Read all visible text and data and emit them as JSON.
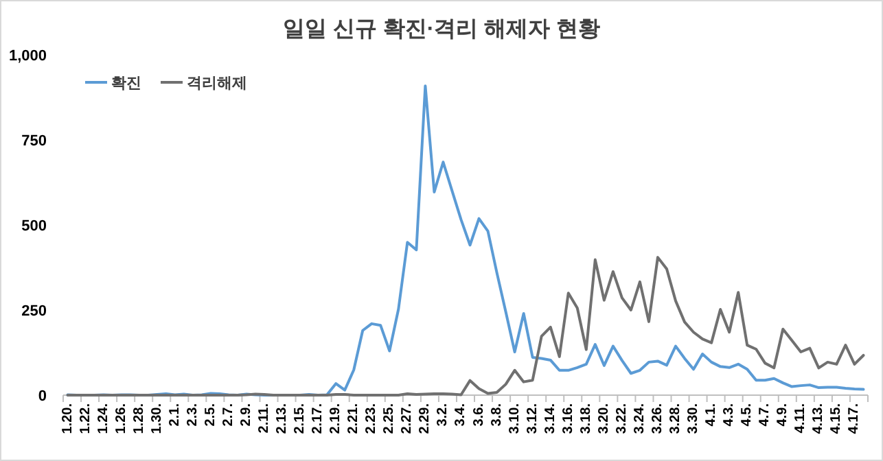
{
  "chart_data": {
    "type": "line",
    "title": "일일 신규 확진·격리 해제자 현황",
    "categories": [
      "1.20.",
      null,
      "1.22.",
      null,
      "1.24.",
      null,
      "1.26.",
      null,
      "1.28.",
      null,
      "1.30.",
      null,
      "2.1.",
      null,
      "2.3.",
      null,
      "2.5.",
      null,
      "2.7.",
      null,
      "2.9.",
      null,
      "2.11.",
      null,
      "2.13.",
      null,
      "2.15.",
      null,
      "2.17.",
      null,
      "2.19.",
      null,
      "2.21.",
      null,
      "2.23.",
      null,
      "2.25.",
      null,
      "2.27.",
      null,
      "2.29.",
      null,
      "3.2.",
      null,
      "3.4.",
      null,
      "3.6.",
      null,
      "3.8.",
      null,
      "3.10.",
      null,
      "3.12.",
      null,
      "3.14.",
      null,
      "3.16.",
      null,
      "3.18.",
      null,
      "3.20.",
      null,
      "3.22.",
      null,
      "3.24.",
      null,
      "3.26.",
      null,
      "3.28.",
      null,
      "3.30.",
      null,
      "4.1.",
      null,
      "4.3.",
      null,
      "4.5.",
      null,
      "4.7.",
      null,
      "4.9.",
      null,
      "4.11.",
      null,
      "4.13.",
      null,
      "4.15.",
      null,
      "4.17.",
      null
    ],
    "series": [
      {
        "name": "확진",
        "color": "#5b9bd5",
        "values": [
          1,
          0,
          0,
          0,
          1,
          0,
          1,
          1,
          0,
          0,
          2,
          4,
          1,
          3,
          0,
          1,
          5,
          4,
          1,
          0,
          3,
          1,
          0,
          0,
          0,
          0,
          0,
          2,
          0,
          1,
          34,
          15,
          74,
          190,
          210,
          205,
          130,
          253,
          449,
          427,
          909,
          597,
          685,
          600,
          516,
          441,
          519,
          482,
          360,
          245,
          127,
          240,
          111,
          108,
          103,
          73,
          73,
          81,
          91,
          149,
          87,
          144,
          102,
          64,
          73,
          97,
          100,
          88,
          144,
          108,
          76,
          121,
          97,
          84,
          81,
          91,
          76,
          44,
          44,
          49,
          36,
          25,
          28,
          30,
          22,
          23,
          23,
          20,
          18,
          17
        ]
      },
      {
        "name": "격리해제",
        "color": "#707070",
        "values": [
          0,
          0,
          0,
          0,
          0,
          0,
          0,
          0,
          0,
          0,
          0,
          0,
          0,
          0,
          0,
          0,
          0,
          0,
          0,
          0,
          1,
          3,
          2,
          0,
          0,
          0,
          0,
          0,
          0,
          0,
          2,
          2,
          0,
          0,
          0,
          0,
          0,
          0,
          4,
          2,
          3,
          4,
          4,
          3,
          1,
          43,
          19,
          5,
          8,
          32,
          73,
          39,
          44,
          173,
          200,
          113,
          300,
          256,
          134,
          398,
          279,
          363,
          286,
          250,
          333,
          216,
          405,
          371,
          277,
          215,
          185,
          165,
          154,
          252,
          185,
          302,
          147,
          135,
          94,
          80,
          194,
          161,
          127,
          138,
          80,
          97,
          91,
          147,
          91,
          117
        ]
      }
    ],
    "ylim": [
      0,
      1000
    ],
    "yticks": [
      0,
      250,
      500,
      750,
      {
        "value": 1000,
        "label": "1,000"
      }
    ],
    "legend": "top left",
    "grid": false
  }
}
